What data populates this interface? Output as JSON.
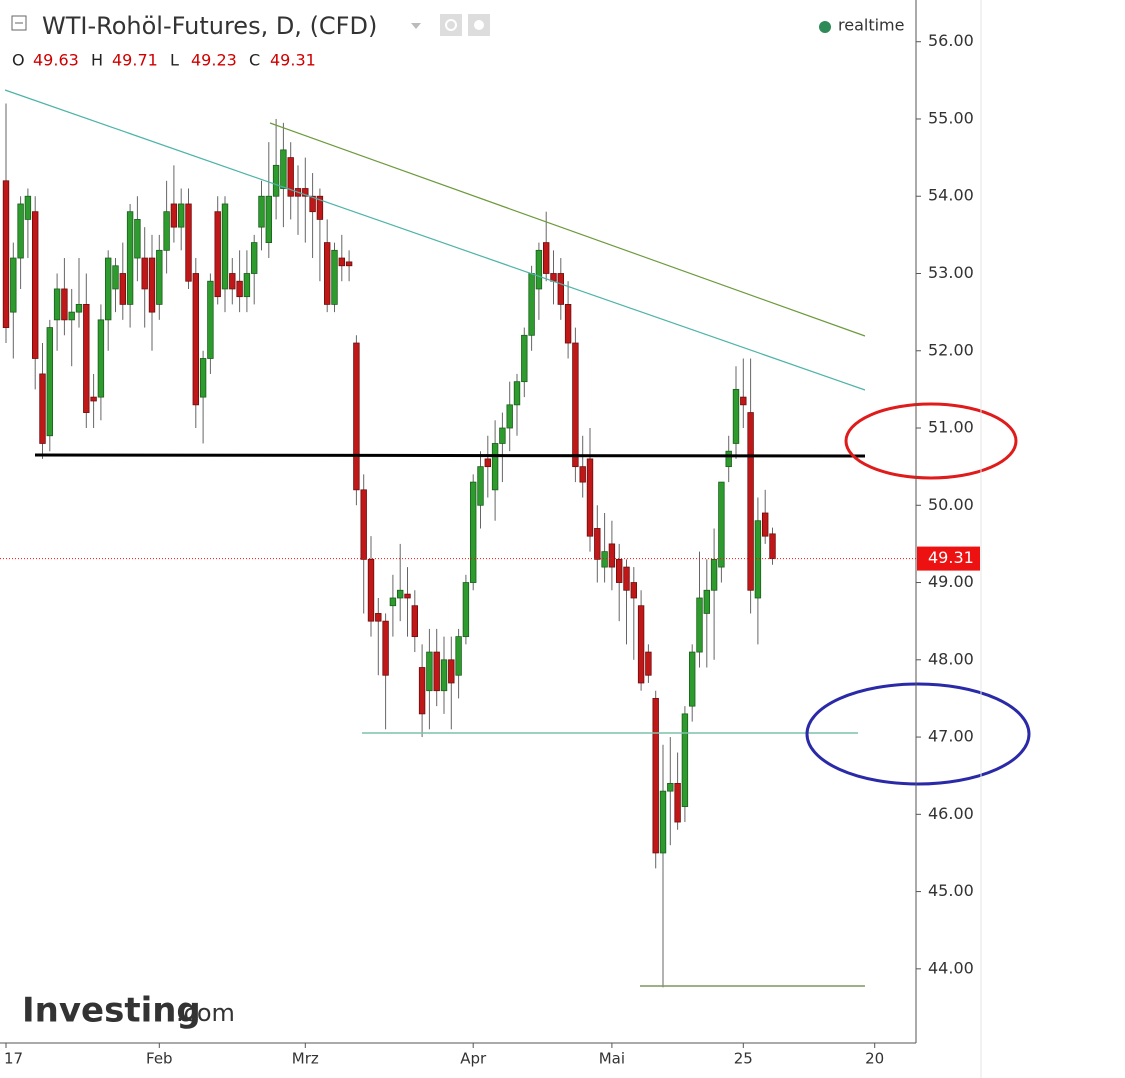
{
  "header": {
    "title": "WTI-Rohöl-Futures, D, (CFD)",
    "status": "realtime",
    "ohlc_labels": [
      "O",
      "H",
      "L",
      "C"
    ]
  },
  "watermark": {
    "brand": "Investing",
    "suffix": ".com"
  },
  "chart_data": {
    "type": "candlestick",
    "categories": [
      "17",
      null,
      null,
      null,
      null,
      null,
      null,
      null,
      null,
      null,
      null,
      null,
      null,
      null,
      null,
      null,
      null,
      null,
      null,
      null,
      null,
      "Feb",
      null,
      null,
      null,
      null,
      null,
      null,
      null,
      null,
      null,
      null,
      null,
      null,
      null,
      null,
      null,
      null,
      null,
      null,
      null,
      "Mrz",
      null,
      null,
      null,
      null,
      null,
      null,
      null,
      null,
      null,
      null,
      null,
      null,
      null,
      null,
      null,
      null,
      null,
      null,
      null,
      null,
      null,
      null,
      "Apr",
      null,
      null,
      null,
      null,
      null,
      null,
      null,
      null,
      null,
      null,
      null,
      null,
      null,
      null,
      null,
      null,
      null,
      null,
      "Mai",
      null,
      null,
      null,
      null,
      null,
      null,
      null,
      null,
      null,
      null,
      null,
      null,
      null,
      null,
      null,
      null,
      null,
      "25",
      null,
      null,
      null,
      null,
      null,
      null,
      null,
      null,
      null,
      null,
      null,
      null,
      null,
      null,
      null,
      null,
      null,
      "20",
      null
    ],
    "open": [
      54.2,
      52.5,
      53.2,
      53.7,
      53.8,
      51.7,
      50.9,
      52.4,
      52.8,
      52.4,
      52.5,
      52.6,
      51.4,
      51.4,
      52.4,
      52.8,
      53.0,
      52.6,
      53.2,
      53.2,
      53.2,
      52.6,
      53.3,
      53.9,
      53.6,
      53.9,
      53.0,
      51.4,
      51.9,
      53.8,
      52.8,
      53.0,
      52.9,
      52.7,
      53.0,
      53.6,
      53.4,
      54.0,
      54.1,
      54.5,
      54.1,
      54.1,
      54.0,
      54.0,
      53.4,
      52.6,
      53.2,
      53.15,
      52.1,
      50.2,
      49.3,
      48.6,
      48.5,
      48.7,
      48.8,
      48.85,
      48.7,
      47.9,
      47.6,
      48.1,
      47.6,
      48.0,
      47.8,
      48.3,
      49.0,
      50.0,
      50.6,
      50.2,
      50.8,
      51.0,
      51.3,
      51.6,
      52.2,
      52.8,
      53.4,
      53.0,
      53.0,
      52.6,
      52.1,
      50.5,
      50.6,
      49.7,
      49.2,
      49.5,
      49.3,
      49.2,
      49.0,
      48.7,
      48.1,
      47.5,
      45.5,
      46.3,
      46.4,
      46.1,
      47.4,
      48.1,
      48.6,
      48.9,
      49.2,
      50.5,
      50.8,
      51.4,
      51.2,
      48.8,
      49.9,
      49.63,
      null,
      null,
      null,
      null,
      null,
      null,
      null,
      null,
      null,
      null,
      null,
      null,
      null,
      null,
      null
    ],
    "high": [
      55.2,
      53.4,
      54.0,
      54.1,
      54.0,
      52.1,
      52.4,
      53.0,
      53.2,
      52.8,
      53.2,
      53.0,
      51.7,
      52.6,
      53.3,
      53.2,
      53.4,
      53.9,
      54.0,
      53.6,
      53.5,
      53.5,
      54.2,
      54.4,
      54.1,
      54.1,
      53.2,
      52.0,
      53.0,
      54.0,
      54.0,
      53.2,
      53.3,
      53.3,
      53.5,
      54.2,
      54.7,
      55.0,
      54.95,
      54.7,
      54.4,
      54.5,
      54.3,
      54.1,
      53.7,
      53.4,
      53.5,
      53.3,
      52.2,
      50.4,
      49.6,
      48.8,
      48.6,
      49.1,
      49.5,
      49.2,
      48.9,
      48.2,
      48.4,
      48.4,
      48.3,
      48.3,
      48.4,
      49.1,
      50.4,
      50.7,
      50.9,
      51.1,
      51.2,
      51.6,
      51.7,
      52.3,
      53.1,
      53.4,
      53.8,
      53.3,
      53.2,
      52.9,
      52.3,
      50.9,
      51.0,
      50.0,
      49.9,
      49.8,
      49.5,
      49.3,
      49.2,
      48.9,
      48.2,
      47.6,
      46.9,
      47.0,
      46.8,
      47.4,
      48.2,
      49.4,
      49.3,
      49.7,
      50.3,
      50.9,
      51.8,
      51.9,
      51.9,
      50.1,
      50.2,
      49.71,
      null,
      null,
      null,
      null,
      null,
      null,
      null,
      null,
      null,
      null,
      null,
      null,
      null,
      null,
      null
    ],
    "low": [
      52.1,
      51.9,
      52.8,
      53.2,
      51.5,
      50.6,
      50.7,
      52.0,
      52.2,
      51.8,
      52.3,
      51.0,
      51.0,
      51.1,
      52.0,
      52.5,
      52.4,
      52.3,
      52.9,
      52.3,
      52.0,
      52.4,
      53.0,
      53.4,
      53.3,
      52.8,
      51.0,
      50.8,
      51.7,
      52.6,
      52.5,
      52.6,
      52.5,
      52.5,
      52.6,
      53.3,
      53.2,
      53.7,
      53.6,
      53.7,
      53.5,
      53.4,
      53.2,
      52.9,
      52.5,
      52.5,
      52.9,
      52.9,
      50.0,
      48.6,
      48.3,
      47.8,
      47.1,
      48.3,
      48.5,
      48.3,
      48.1,
      47.0,
      47.1,
      47.4,
      47.3,
      47.1,
      47.5,
      48.2,
      48.9,
      49.7,
      50.1,
      49.8,
      50.3,
      50.7,
      50.9,
      51.4,
      52.0,
      52.4,
      52.9,
      52.6,
      52.4,
      51.9,
      50.3,
      50.1,
      49.4,
      49.0,
      49.0,
      48.9,
      48.5,
      48.2,
      48.0,
      47.6,
      47.7,
      45.3,
      43.76,
      45.6,
      45.8,
      45.9,
      47.2,
      47.9,
      47.9,
      48.0,
      49.0,
      50.3,
      50.6,
      51.0,
      48.6,
      48.2,
      49.5,
      49.23,
      null,
      null,
      null,
      null,
      null,
      null,
      null,
      null,
      null,
      null,
      null,
      null,
      null,
      null,
      null
    ],
    "close": [
      52.3,
      53.2,
      53.9,
      54.0,
      51.9,
      50.8,
      52.3,
      52.8,
      52.4,
      52.5,
      52.6,
      51.2,
      51.35,
      52.4,
      53.2,
      53.1,
      52.6,
      53.8,
      53.7,
      52.8,
      52.5,
      53.3,
      53.8,
      53.6,
      53.9,
      52.9,
      51.3,
      51.9,
      52.9,
      52.7,
      53.9,
      52.8,
      52.7,
      53.0,
      53.4,
      54.0,
      54.0,
      54.4,
      54.6,
      54.0,
      54.0,
      54.0,
      53.8,
      53.7,
      52.6,
      53.3,
      53.1,
      53.1,
      50.2,
      49.3,
      48.5,
      48.5,
      47.8,
      48.8,
      48.9,
      48.8,
      48.3,
      47.3,
      48.1,
      47.6,
      48.0,
      47.7,
      48.3,
      49.0,
      50.3,
      50.5,
      50.5,
      50.8,
      51.0,
      51.3,
      51.6,
      52.2,
      53.0,
      53.3,
      53.0,
      52.9,
      52.6,
      52.1,
      50.5,
      50.3,
      49.6,
      49.3,
      49.4,
      49.2,
      49.0,
      48.9,
      48.8,
      47.7,
      47.8,
      45.5,
      46.3,
      46.4,
      45.9,
      47.3,
      48.1,
      48.8,
      48.9,
      49.3,
      50.3,
      50.7,
      51.5,
      51.3,
      48.9,
      49.8,
      49.6,
      49.31,
      null,
      null,
      null,
      null,
      null,
      null,
      null,
      null,
      null,
      null,
      null,
      null,
      null,
      null,
      null
    ],
    "up_color": "#2e9b2e",
    "down_color": "#c01818",
    "last_price_color": "#ee1111",
    "ylim": [
      43.04,
      56.54
    ],
    "yticks": [
      {
        "value": 44,
        "label": "44.00"
      },
      {
        "value": 45,
        "label": "45.00"
      },
      {
        "value": 46,
        "label": "46.00"
      },
      {
        "value": 47,
        "label": "47.00"
      },
      {
        "value": 48,
        "label": "48.00"
      },
      {
        "value": 49,
        "label": "49.00"
      },
      {
        "value": 50,
        "label": "50.00"
      },
      {
        "value": 51,
        "label": "51.00"
      },
      {
        "value": 52,
        "label": "52.00"
      },
      {
        "value": 53,
        "label": "53.00"
      },
      {
        "value": 54,
        "label": "54.00"
      },
      {
        "value": 55,
        "label": "55.00"
      },
      {
        "value": 56,
        "label": "56.00"
      }
    ]
  }
}
